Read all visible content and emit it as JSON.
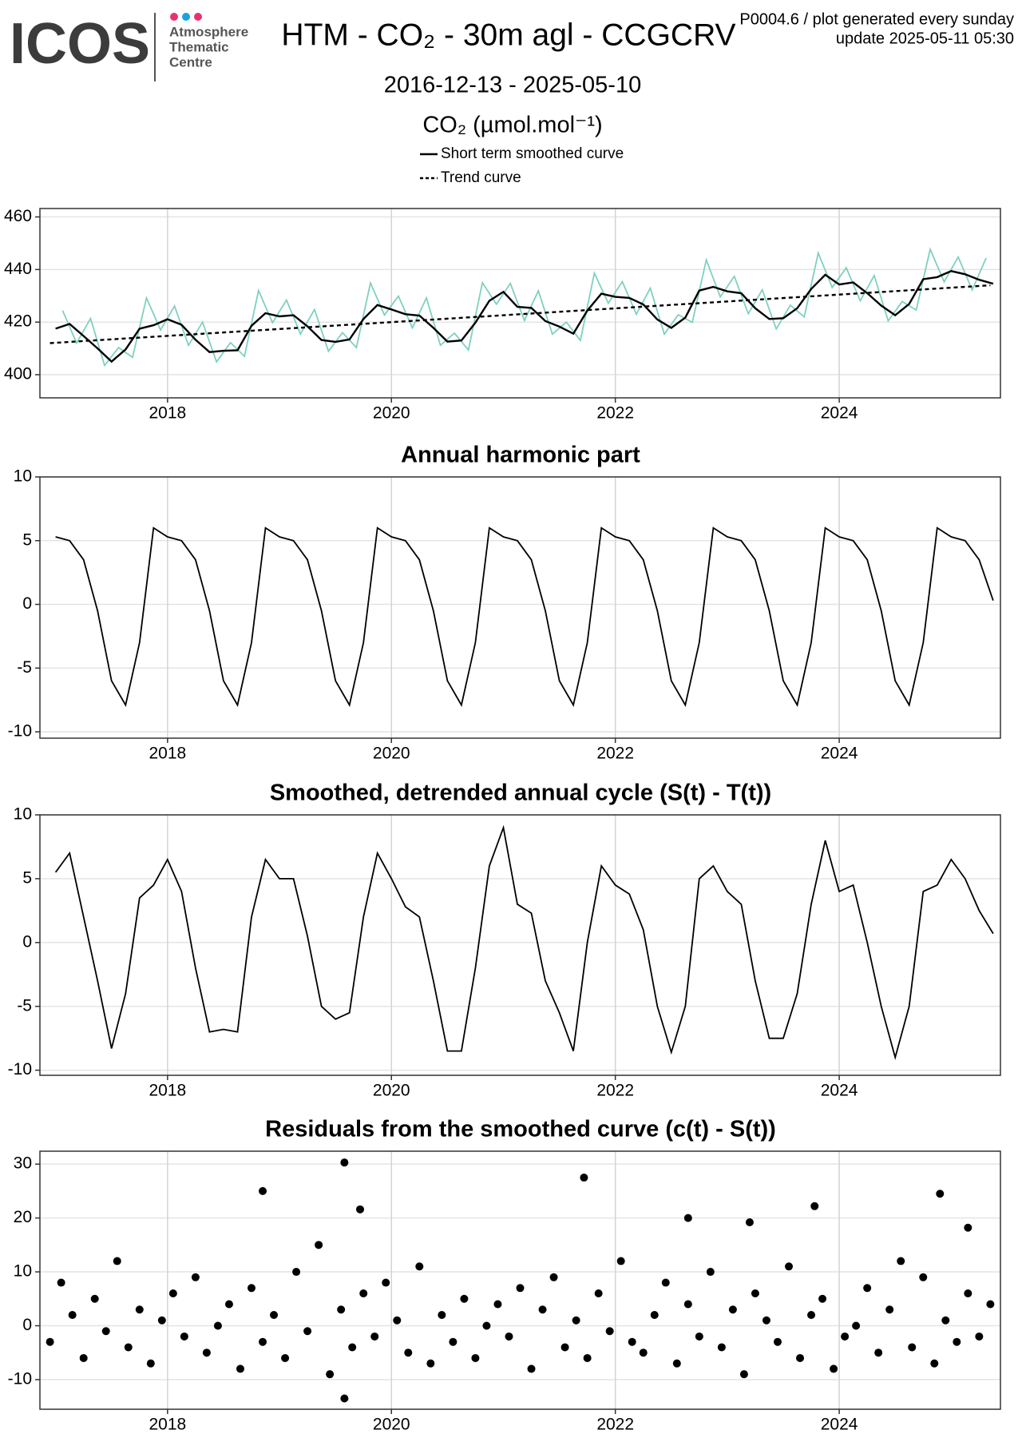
{
  "header": {
    "logo": "ICOS",
    "centre": [
      "Atmosphere",
      "Thematic",
      "Centre"
    ],
    "title": "HTM - CO₂ - 30m agl - CCGCRV",
    "subtitle": "2016-12-13 - 2025-05-10",
    "units": "CO₂ (µmol.mol⁻¹)",
    "note": "P0004.6 / plot generated every sunday",
    "update": "update  2025-05-11 05:30"
  },
  "chart_data": [
    {
      "type": "line",
      "legend": "top-center",
      "x": [
        2017,
        2017.125,
        2017.25,
        2017.375,
        2017.5,
        2017.625,
        2017.75,
        2017.875,
        2018,
        2018.125,
        2018.25,
        2018.375,
        2018.5,
        2018.625,
        2018.75,
        2018.875,
        2019,
        2019.125,
        2019.25,
        2019.375,
        2019.5,
        2019.625,
        2019.75,
        2019.875,
        2020,
        2020.125,
        2020.25,
        2020.375,
        2020.5,
        2020.625,
        2020.75,
        2020.875,
        2021,
        2021.125,
        2021.25,
        2021.375,
        2021.5,
        2021.625,
        2021.75,
        2021.875,
        2022,
        2022.125,
        2022.25,
        2022.375,
        2022.5,
        2022.625,
        2022.75,
        2022.875,
        2023,
        2023.125,
        2023.25,
        2023.375,
        2023.5,
        2023.625,
        2023.75,
        2023.875,
        2024,
        2024.125,
        2024.25,
        2024.375,
        2024.5,
        2024.625,
        2024.75,
        2024.875,
        2025,
        2025.125,
        2025.25,
        2025.375
      ],
      "series": [
        {
          "color": "#7fd0c0",
          "x": [
            2017.0625,
            2017.1875,
            2017.3125,
            2017.4375,
            2017.5625,
            2017.6875,
            2017.8125,
            2017.9375,
            2018.0625,
            2018.1875,
            2018.3125,
            2018.4375,
            2018.5625,
            2018.6875,
            2018.8125,
            2018.9375,
            2019.0625,
            2019.1875,
            2019.3125,
            2019.4375,
            2019.5625,
            2019.6875,
            2019.8125,
            2019.9375,
            2020.0625,
            2020.1875,
            2020.3125,
            2020.4375,
            2020.5625,
            2020.6875,
            2020.8125,
            2020.9375,
            2021.0625,
            2021.1875,
            2021.3125,
            2021.4375,
            2021.5625,
            2021.6875,
            2021.8125,
            2021.9375,
            2022.0625,
            2022.1875,
            2022.3125,
            2022.4375,
            2022.5625,
            2022.6875,
            2022.8125,
            2022.9375,
            2023.0625,
            2023.1875,
            2023.3125,
            2023.4375,
            2023.5625,
            2023.6875,
            2023.8125,
            2023.9375,
            2024.0625,
            2024.1875,
            2024.3125,
            2024.4375,
            2024.5625,
            2024.6875,
            2024.8125,
            2024.9375,
            2025.0625,
            2025.1875,
            2025.3125
          ],
          "values": [
            424.4,
            412.0,
            421.4,
            403.5,
            410.3,
            406.6,
            429.2,
            417.0,
            426.1,
            411.2,
            420.0,
            404.9,
            412.2,
            407.0,
            432.0,
            419.8,
            428.4,
            415.5,
            424.8,
            408.9,
            416.0,
            410.3,
            434.9,
            422.7,
            429.9,
            417.8,
            429.2,
            411.2,
            415.8,
            409.4,
            435.0,
            426.8,
            434.7,
            420.6,
            431.9,
            415.4,
            420.0,
            413.0,
            438.6,
            427.2,
            435.4,
            423.0,
            432.9,
            415.4,
            422.8,
            419.9,
            443.7,
            429.6,
            437.4,
            423.2,
            432.3,
            417.4,
            426.4,
            422.0,
            446.3,
            433.2,
            440.7,
            428.1,
            437.7,
            420.5,
            427.8,
            424.6,
            447.7,
            435.3,
            444.8,
            432.2,
            444.4
          ]
        },
        {
          "name": "Short term smoothed curve",
          "color": "#000000",
          "values": [
            417.5,
            419.3,
            414.7,
            410.0,
            405.0,
            409.6,
            417.5,
            418.8,
            421.1,
            419.0,
            413.3,
            408.6,
            409.1,
            409.3,
            418.6,
            423.4,
            422.2,
            422.6,
            418.4,
            413.2,
            412.5,
            413.4,
            421.2,
            426.5,
            424.8,
            423.0,
            422.5,
            417.8,
            412.6,
            413.0,
            419.8,
            428.1,
            431.5,
            425.8,
            425.4,
            420.4,
            418.3,
            415.6,
            424.4,
            430.8,
            429.6,
            429.2,
            426.7,
            421.0,
            417.8,
            421.7,
            432.0,
            433.4,
            431.7,
            431.0,
            425.3,
            421.2,
            421.5,
            425.3,
            432.6,
            438.0,
            434.3,
            435.1,
            431.0,
            426.3,
            422.6,
            426.9,
            436.3,
            437.1,
            439.4,
            438.2,
            436.1,
            434.6
          ]
        },
        {
          "name": "Trend curve",
          "color": "#000000",
          "dash": true,
          "x": [
            2016.95,
            2025.35
          ],
          "values": [
            412,
            434
          ]
        }
      ],
      "xlim": [
        2016.86,
        2025.44
      ],
      "xticks": [
        2018,
        2020,
        2022,
        2024
      ],
      "ylim": [
        391.2,
        463.2
      ],
      "yticks": [
        400,
        420,
        440,
        460
      ],
      "grid": true
    },
    {
      "type": "line",
      "title": "Annual harmonic part",
      "x": [
        2017,
        2017.125,
        2017.25,
        2017.375,
        2017.5,
        2017.625,
        2017.75,
        2017.875,
        2018,
        2018.125,
        2018.25,
        2018.375,
        2018.5,
        2018.625,
        2018.75,
        2018.875,
        2019,
        2019.125,
        2019.25,
        2019.375,
        2019.5,
        2019.625,
        2019.75,
        2019.875,
        2020,
        2020.125,
        2020.25,
        2020.375,
        2020.5,
        2020.625,
        2020.75,
        2020.875,
        2021,
        2021.125,
        2021.25,
        2021.375,
        2021.5,
        2021.625,
        2021.75,
        2021.875,
        2022,
        2022.125,
        2022.25,
        2022.375,
        2022.5,
        2022.625,
        2022.75,
        2022.875,
        2023,
        2023.125,
        2023.25,
        2023.375,
        2023.5,
        2023.625,
        2023.75,
        2023.875,
        2024,
        2024.125,
        2024.25,
        2024.375,
        2024.5,
        2024.625,
        2024.75,
        2024.875,
        2025,
        2025.125,
        2025.25,
        2025.375
      ],
      "series": [
        {
          "color": "#000000",
          "values": [
            5.3,
            5.0,
            3.5,
            -0.5,
            -6.0,
            -7.9,
            -3.0,
            6.0,
            5.3,
            5.0,
            3.5,
            -0.5,
            -6.0,
            -7.9,
            -3.0,
            6.0,
            5.3,
            5.0,
            3.5,
            -0.5,
            -6.0,
            -7.9,
            -3.0,
            6.0,
            5.3,
            5.0,
            3.5,
            -0.5,
            -6.0,
            -7.9,
            -3.0,
            6.0,
            5.3,
            5.0,
            3.5,
            -0.5,
            -6.0,
            -7.9,
            -3.0,
            6.0,
            5.3,
            5.0,
            3.5,
            -0.5,
            -6.0,
            -7.9,
            -3.0,
            6.0,
            5.3,
            5.0,
            3.5,
            -0.5,
            -6.0,
            -7.9,
            -3.0,
            6.0,
            5.3,
            5.0,
            3.5,
            -0.5,
            -6.0,
            -7.9,
            -3.0,
            6.0,
            5.3,
            5.0,
            3.5,
            0.3
          ]
        }
      ],
      "xlim": [
        2016.86,
        2025.44
      ],
      "xticks": [
        2018,
        2020,
        2022,
        2024
      ],
      "ylim": [
        -10.5,
        10
      ],
      "yticks": [
        -10,
        -5,
        0,
        5,
        10
      ],
      "grid": true
    },
    {
      "type": "line",
      "title": "Smoothed, detrended annual cycle (S(t) - T(t))",
      "x": [
        2017,
        2017.125,
        2017.25,
        2017.375,
        2017.5,
        2017.625,
        2017.75,
        2017.875,
        2018,
        2018.125,
        2018.25,
        2018.375,
        2018.5,
        2018.625,
        2018.75,
        2018.875,
        2019,
        2019.125,
        2019.25,
        2019.375,
        2019.5,
        2019.625,
        2019.75,
        2019.875,
        2020,
        2020.125,
        2020.25,
        2020.375,
        2020.5,
        2020.625,
        2020.75,
        2020.875,
        2021,
        2021.125,
        2021.25,
        2021.375,
        2021.5,
        2021.625,
        2021.75,
        2021.875,
        2022,
        2022.125,
        2022.25,
        2022.375,
        2022.5,
        2022.625,
        2022.75,
        2022.875,
        2023,
        2023.125,
        2023.25,
        2023.375,
        2023.5,
        2023.625,
        2023.75,
        2023.875,
        2024,
        2024.125,
        2024.25,
        2024.375,
        2024.5,
        2024.625,
        2024.75,
        2024.875,
        2025,
        2025.125,
        2025.25,
        2025.375
      ],
      "series": [
        {
          "color": "#000000",
          "values": [
            5.5,
            7,
            2,
            -3,
            -8.3,
            -4,
            3.5,
            4.5,
            6.5,
            4,
            -2,
            -7,
            -6.8,
            -7,
            2,
            6.5,
            5,
            5,
            0.5,
            -5,
            -6,
            -5.5,
            2,
            7,
            5,
            2.8,
            2,
            -3,
            -8.5,
            -8.5,
            -2,
            6,
            9,
            3,
            2.3,
            -3,
            -5.5,
            -8.5,
            0,
            6,
            4.5,
            3.8,
            1,
            -5,
            -8.6,
            -5,
            5,
            6,
            4,
            3,
            -3,
            -7.5,
            -7.5,
            -4,
            3,
            8,
            4,
            4.5,
            0,
            -5,
            -9,
            -5,
            4,
            4.5,
            6.5,
            5,
            2.5,
            0.7
          ]
        }
      ],
      "xlim": [
        2016.86,
        2025.44
      ],
      "xticks": [
        2018,
        2020,
        2022,
        2024
      ],
      "ylim": [
        -10.4,
        10
      ],
      "yticks": [
        -10,
        -5,
        0,
        5,
        10
      ],
      "grid": true
    },
    {
      "type": "scatter",
      "title": "Residuals from the smoothed curve (c(t) - S(t))",
      "x": [
        2016.95,
        2017.05,
        2017.15,
        2017.25,
        2017.35,
        2017.45,
        2017.55,
        2017.65,
        2017.75,
        2017.85,
        2017.95,
        2018.05,
        2018.15,
        2018.25,
        2018.35,
        2018.45,
        2018.55,
        2018.65,
        2018.75,
        2018.85,
        2018.95,
        2019.05,
        2019.15,
        2019.25,
        2019.35,
        2019.45,
        2019.55,
        2019.65,
        2019.75,
        2019.85,
        2019.95,
        2020.05,
        2020.15,
        2020.25,
        2020.35,
        2020.45,
        2020.55,
        2020.65,
        2020.75,
        2020.85,
        2020.95,
        2021.05,
        2021.15,
        2021.25,
        2021.35,
        2021.45,
        2021.55,
        2021.65,
        2021.75,
        2021.85,
        2021.95,
        2022.05,
        2022.15,
        2022.25,
        2022.35,
        2022.45,
        2022.55,
        2022.65,
        2022.75,
        2022.85,
        2022.95,
        2023.05,
        2023.15,
        2023.25,
        2023.35,
        2023.45,
        2023.55,
        2023.65,
        2023.75,
        2023.85,
        2023.95,
        2024.05,
        2024.15,
        2024.25,
        2024.35,
        2024.45,
        2024.55,
        2024.65,
        2024.75,
        2024.85,
        2024.95,
        2025.05,
        2025.15,
        2025.25,
        2025.35,
        2018.85,
        2019.58,
        2019.72,
        2019.58,
        2021.72,
        2022.65,
        2023.2,
        2023.78,
        2024.9,
        2025.15
      ],
      "series": [
        {
          "color": "#000000",
          "values": [
            -3,
            8,
            2,
            -6,
            5,
            -1,
            12,
            -4,
            3,
            -7,
            1,
            6,
            -2,
            9,
            -5,
            0,
            4,
            -8,
            7,
            -3,
            2,
            -6,
            10,
            -1,
            15,
            -9,
            3,
            -4,
            6,
            -2,
            8,
            1,
            -5,
            11,
            -7,
            2,
            -3,
            5,
            -6,
            0,
            4,
            -2,
            7,
            -8,
            3,
            9,
            -4,
            1,
            -6,
            6,
            -1,
            12,
            -3,
            -5,
            2,
            8,
            -7,
            4,
            -2,
            10,
            -4,
            3,
            -9,
            6,
            1,
            -3,
            11,
            -6,
            2,
            5,
            -8,
            -2,
            0,
            7,
            -5,
            3,
            12,
            -4,
            9,
            -7,
            1,
            -3,
            6,
            -2,
            4,
            25,
            30.3,
            21.6,
            -13.5,
            27.5,
            20,
            19.2,
            22.2,
            24.5,
            18.2
          ]
        }
      ],
      "xlim": [
        2016.86,
        2025.44
      ],
      "xticks": [
        2018,
        2020,
        2022,
        2024
      ],
      "ylim": [
        -15.5,
        32.4
      ],
      "yticks": [
        -10,
        0,
        10,
        20,
        30
      ],
      "grid": true
    }
  ]
}
